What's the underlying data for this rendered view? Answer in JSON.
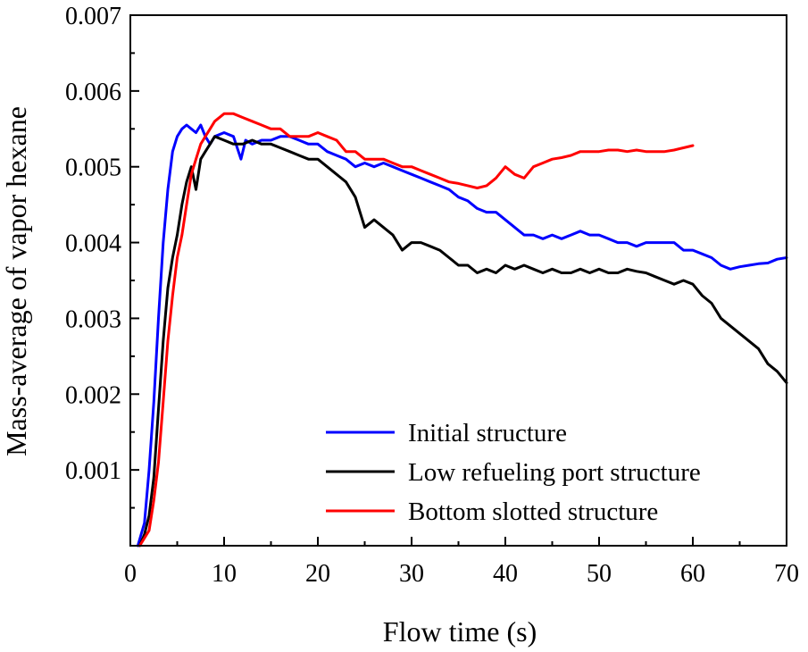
{
  "chart_data": {
    "type": "line",
    "title": "",
    "xlabel": "Flow time (s)",
    "ylabel": "Mass-average of vapor hexane",
    "xlim": [
      0,
      70
    ],
    "ylim": [
      0,
      0.007
    ],
    "x_ticks": [
      0,
      10,
      20,
      30,
      40,
      50,
      60,
      70
    ],
    "x_tick_labels": [
      "0",
      "10",
      "20",
      "30",
      "40",
      "50",
      "60",
      "70"
    ],
    "y_ticks": [
      0.001,
      0.002,
      0.003,
      0.004,
      0.005,
      0.006,
      0.007
    ],
    "y_tick_labels": [
      "0.001",
      "0.002",
      "0.003",
      "0.004",
      "0.005",
      "0.006",
      "0.007"
    ],
    "grid": false,
    "legend_position": "bottom-right",
    "series": [
      {
        "name": "Initial structure",
        "color": "#0000ff",
        "x": [
          0.8,
          1.5,
          2,
          2.5,
          3,
          3.5,
          4,
          4.5,
          5,
          5.5,
          6,
          6.5,
          7,
          7.5,
          8,
          8.5,
          9,
          10,
          11,
          11.8,
          12.3,
          13,
          14,
          15,
          16,
          17,
          18,
          19,
          20,
          21,
          22,
          23,
          24,
          25,
          26,
          27,
          28,
          29,
          30,
          31,
          32,
          33,
          34,
          35,
          36,
          37,
          38,
          39,
          40,
          41,
          42,
          43,
          44,
          45,
          46,
          47,
          48,
          49,
          50,
          51,
          52,
          53,
          54,
          55,
          56,
          57,
          58,
          59,
          60,
          61,
          62,
          63,
          64,
          65,
          66,
          67,
          68,
          69,
          70
        ],
        "y": [
          0.0,
          0.0003,
          0.001,
          0.0019,
          0.003,
          0.004,
          0.0047,
          0.0052,
          0.0054,
          0.0055,
          0.00555,
          0.0055,
          0.00545,
          0.00555,
          0.0054,
          0.0053,
          0.0054,
          0.00545,
          0.0054,
          0.0051,
          0.00535,
          0.0053,
          0.00535,
          0.00535,
          0.0054,
          0.0054,
          0.00535,
          0.0053,
          0.0053,
          0.0052,
          0.00515,
          0.0051,
          0.005,
          0.00505,
          0.005,
          0.00505,
          0.005,
          0.00495,
          0.0049,
          0.00485,
          0.0048,
          0.00475,
          0.0047,
          0.0046,
          0.00455,
          0.00445,
          0.0044,
          0.0044,
          0.0043,
          0.0042,
          0.0041,
          0.0041,
          0.00405,
          0.0041,
          0.00405,
          0.0041,
          0.00415,
          0.0041,
          0.0041,
          0.00405,
          0.004,
          0.004,
          0.00395,
          0.004,
          0.004,
          0.004,
          0.004,
          0.0039,
          0.0039,
          0.00385,
          0.0038,
          0.0037,
          0.00365,
          0.00368,
          0.0037,
          0.00372,
          0.00373,
          0.00378,
          0.0038
        ]
      },
      {
        "name": "Low refueling port structure",
        "color": "#000000",
        "x": [
          1,
          1.5,
          2,
          2.5,
          3,
          3.5,
          4,
          4.5,
          5,
          5.5,
          6,
          6.5,
          7,
          7.5,
          8,
          8.5,
          9,
          10,
          11,
          12,
          13,
          14,
          15,
          16,
          17,
          18,
          19,
          20,
          21,
          22,
          23,
          24,
          25,
          26,
          27,
          28,
          29,
          30,
          31,
          32,
          33,
          34,
          35,
          36,
          37,
          38,
          39,
          40,
          41,
          42,
          43,
          44,
          45,
          46,
          47,
          48,
          49,
          50,
          51,
          52,
          53,
          54,
          55,
          56,
          57,
          58,
          59,
          60,
          61,
          62,
          63,
          64,
          65,
          66,
          67,
          68,
          69,
          70
        ],
        "y": [
          0.0,
          0.00015,
          0.0004,
          0.0009,
          0.0018,
          0.0027,
          0.0034,
          0.0038,
          0.0041,
          0.0045,
          0.0048,
          0.005,
          0.0047,
          0.0051,
          0.0052,
          0.0053,
          0.0054,
          0.00535,
          0.0053,
          0.0053,
          0.00535,
          0.0053,
          0.0053,
          0.00525,
          0.0052,
          0.00515,
          0.0051,
          0.0051,
          0.005,
          0.0049,
          0.0048,
          0.0046,
          0.0042,
          0.0043,
          0.0042,
          0.0041,
          0.0039,
          0.004,
          0.004,
          0.00395,
          0.0039,
          0.0038,
          0.0037,
          0.0037,
          0.0036,
          0.00365,
          0.0036,
          0.0037,
          0.00365,
          0.0037,
          0.00365,
          0.0036,
          0.00365,
          0.0036,
          0.0036,
          0.00365,
          0.0036,
          0.00365,
          0.0036,
          0.0036,
          0.00365,
          0.00362,
          0.0036,
          0.00355,
          0.0035,
          0.00345,
          0.0035,
          0.00345,
          0.0033,
          0.0032,
          0.003,
          0.0029,
          0.0028,
          0.0027,
          0.0026,
          0.0024,
          0.0023,
          0.00215
        ]
      },
      {
        "name": "Bottom slotted structure",
        "color": "#ff0000",
        "x": [
          1,
          1.5,
          2,
          2.5,
          3,
          3.5,
          4,
          4.5,
          5,
          5.5,
          6,
          6.5,
          7,
          7.5,
          8,
          8.5,
          9,
          10,
          11,
          12,
          13,
          14,
          15,
          16,
          17,
          18,
          19,
          20,
          21,
          22,
          23,
          24,
          25,
          26,
          27,
          28,
          29,
          30,
          31,
          32,
          33,
          34,
          35,
          36,
          37,
          38,
          39,
          40,
          41,
          42,
          43,
          44,
          45,
          46,
          47,
          48,
          49,
          50,
          51,
          52,
          53,
          54,
          55,
          56,
          57,
          58,
          59,
          60
        ],
        "y": [
          0.0,
          0.0001,
          0.0002,
          0.0006,
          0.0011,
          0.0019,
          0.0027,
          0.0033,
          0.0038,
          0.0041,
          0.0045,
          0.0049,
          0.0051,
          0.0053,
          0.0054,
          0.0055,
          0.0056,
          0.0057,
          0.0057,
          0.00565,
          0.0056,
          0.00555,
          0.0055,
          0.0055,
          0.0054,
          0.0054,
          0.0054,
          0.00545,
          0.0054,
          0.00535,
          0.0052,
          0.0052,
          0.0051,
          0.0051,
          0.0051,
          0.00505,
          0.005,
          0.005,
          0.00495,
          0.0049,
          0.00485,
          0.0048,
          0.00478,
          0.00475,
          0.00472,
          0.00475,
          0.00485,
          0.005,
          0.0049,
          0.00485,
          0.005,
          0.00505,
          0.0051,
          0.00512,
          0.00515,
          0.0052,
          0.0052,
          0.0052,
          0.00522,
          0.00522,
          0.0052,
          0.00522,
          0.0052,
          0.0052,
          0.0052,
          0.00522,
          0.00525,
          0.00528
        ]
      }
    ]
  }
}
